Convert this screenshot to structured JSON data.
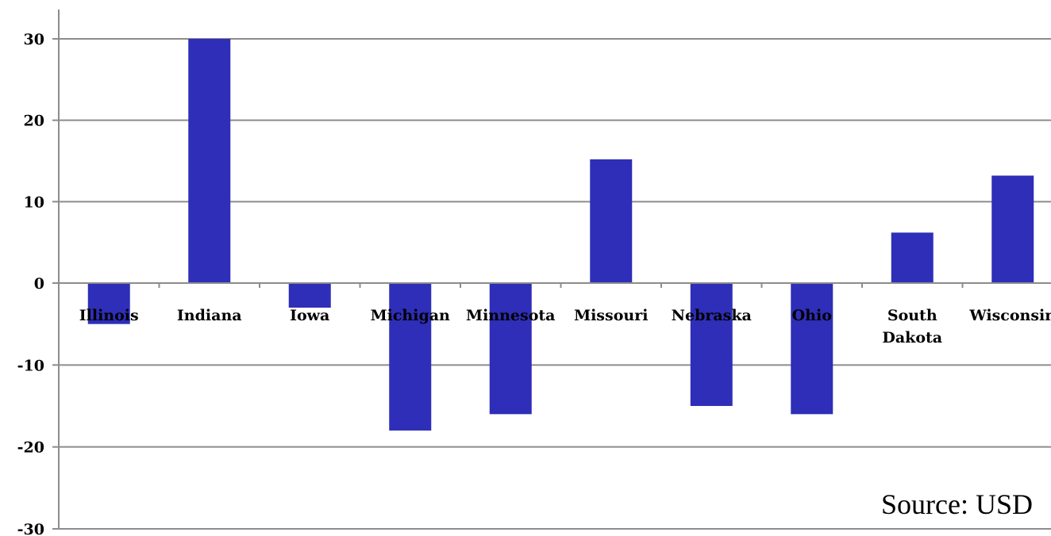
{
  "chart_data": {
    "type": "bar",
    "title": "",
    "xlabel": "",
    "ylabel": "",
    "categories": [
      "Illinois",
      "Indiana",
      "Iowa",
      "Michigan",
      "Minnesota",
      "Missouri",
      "Nebraska",
      "Ohio",
      "South Dakota",
      "Wisconsin"
    ],
    "category_lines": [
      [
        "Illinois"
      ],
      [
        "Indiana"
      ],
      [
        "Iowa"
      ],
      [
        "Michigan"
      ],
      [
        "Minnesota"
      ],
      [
        "Missouri"
      ],
      [
        "Nebraska"
      ],
      [
        "Ohio"
      ],
      [
        "South",
        "Dakota"
      ],
      [
        "Wisconsin"
      ]
    ],
    "values": [
      -5,
      30,
      -3,
      -18,
      -16,
      15.2,
      -15,
      -16,
      6.2,
      13.2
    ],
    "ylim": [
      -30,
      30
    ],
    "yticks": [
      30,
      20,
      10,
      0,
      -10,
      -20,
      -30
    ],
    "ytick_labels": [
      "30",
      "20",
      "10",
      "0",
      "-10",
      "-20",
      "-30"
    ],
    "grid": true,
    "legend": "none",
    "bar_color": "#2e2eb8",
    "annotation": "Source: USD"
  }
}
